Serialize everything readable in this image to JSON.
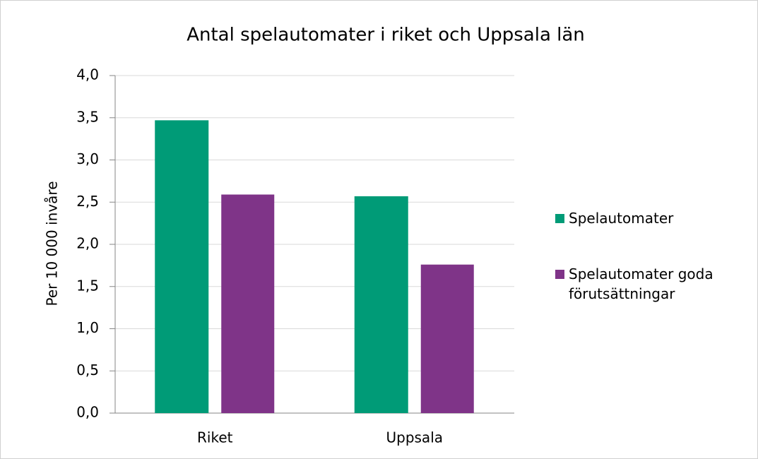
{
  "chart_data": {
    "type": "bar",
    "title": "Antal spelautomater i riket och Uppsala län",
    "y_label": "Per 10 000 invåre",
    "categories": [
      "Riket",
      "Uppsala"
    ],
    "series": [
      {
        "name": "Spelautomater",
        "color": "#009b77",
        "values": [
          3.47,
          2.57
        ]
      },
      {
        "name": "Spelautomater goda förutsättningar",
        "color": "#7f3488",
        "values": [
          2.59,
          1.76
        ]
      }
    ],
    "ylim": [
      0,
      4
    ],
    "yticks": [
      {
        "value": 0,
        "label": "0,0"
      },
      {
        "value": 0.5,
        "label": "0,5"
      },
      {
        "value": 1,
        "label": "1,0"
      },
      {
        "value": 1.5,
        "label": "1,5"
      },
      {
        "value": 2,
        "label": "2,0"
      },
      {
        "value": 2.5,
        "label": "2,5"
      },
      {
        "value": 3,
        "label": "3,0"
      },
      {
        "value": 3.5,
        "label": "3,5"
      },
      {
        "value": 4,
        "label": "4,0"
      }
    ],
    "grid": true,
    "legend": "right"
  }
}
